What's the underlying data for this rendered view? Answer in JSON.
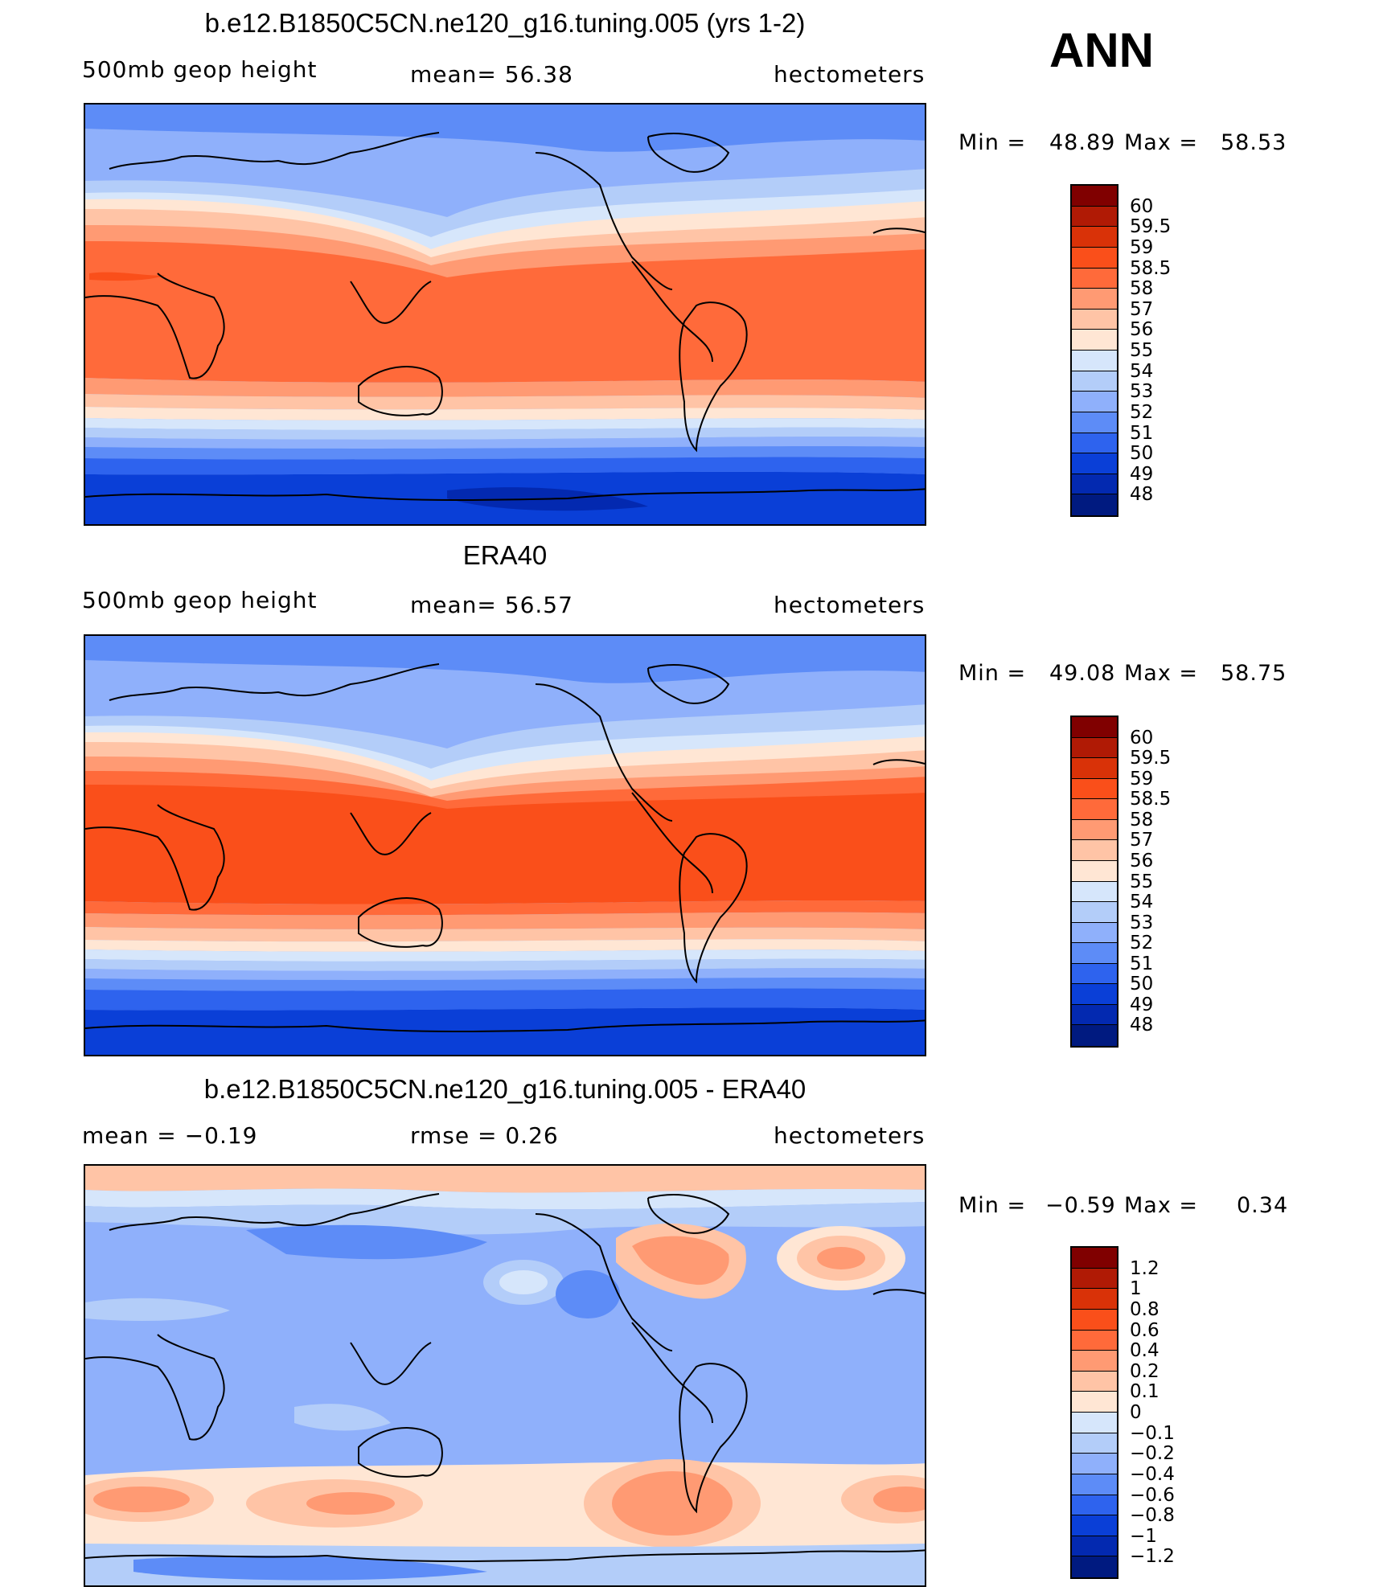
{
  "season": "ANN",
  "panels": [
    {
      "title": "b.e12.B1850C5CN.ne120_g16.tuning.005 (yrs 1-2)",
      "left_label": "500mb  geop  height",
      "center_label": "mean=   56.38",
      "right_label": "hectometers",
      "min_label": "Min  =",
      "min_value": "48.89",
      "max_label": "Max  =",
      "max_value": "58.53",
      "colorbar_labels": [
        "60",
        "59.5",
        "59",
        "58.5",
        "58",
        "57",
        "56",
        "55",
        "54",
        "53",
        "52",
        "51",
        "50",
        "49",
        "48"
      ]
    },
    {
      "title": "ERA40",
      "left_label": "500mb  geop  height",
      "center_label": "mean=   56.57",
      "right_label": "hectometers",
      "min_label": "Min  =",
      "min_value": "49.08",
      "max_label": "Max  =",
      "max_value": "58.75",
      "colorbar_labels": [
        "60",
        "59.5",
        "59",
        "58.5",
        "58",
        "57",
        "56",
        "55",
        "54",
        "53",
        "52",
        "51",
        "50",
        "49",
        "48"
      ]
    },
    {
      "title": "b.e12.B1850C5CN.ne120_g16.tuning.005 - ERA40",
      "left_label": "mean  =    −0.19",
      "center_label": "rmse  =     0.26",
      "right_label": "hectometers",
      "min_label": "Min  =",
      "min_value": "−0.59",
      "max_label": "Max  =",
      "max_value": "0.34",
      "colorbar_labels": [
        "1.2",
        "1",
        "0.8",
        "0.6",
        "0.4",
        "0.2",
        "0.1",
        "0",
        "−0.1",
        "−0.2",
        "−0.4",
        "−0.6",
        "−0.8",
        "−1",
        "−1.2"
      ]
    }
  ],
  "colors": {
    "colorbar": [
      "#800000",
      "#b01a05",
      "#d93208",
      "#fa4f1a",
      "#ff6a3a",
      "#ff9a73",
      "#ffc4a6",
      "#ffe6d4",
      "#d6e6fb",
      "#b3cdf9",
      "#8fb0fb",
      "#5d8cf7",
      "#2e63ee",
      "#0a3fd7",
      "#0329b0",
      "#001a80"
    ]
  }
}
